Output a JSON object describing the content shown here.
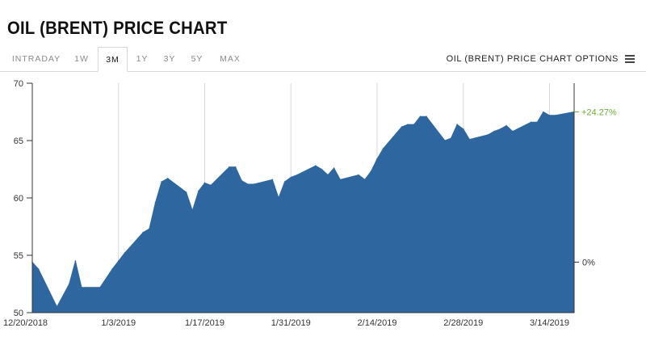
{
  "header": {
    "title": "OIL (BRENT) PRICE CHART"
  },
  "tabs": [
    {
      "label": "INTRADAY",
      "active": false
    },
    {
      "label": "1W",
      "active": false
    },
    {
      "label": "3M",
      "active": true
    },
    {
      "label": "1Y",
      "active": false
    },
    {
      "label": "3Y",
      "active": false
    },
    {
      "label": "5Y",
      "active": false
    },
    {
      "label": "MAX",
      "active": false
    }
  ],
  "options": {
    "label": "OIL (BRENT) PRICE CHART OPTIONS",
    "icon": "hamburger-menu-icon"
  },
  "colors": {
    "area": "#2e67a0",
    "positive": "#6fae36",
    "axis": "#333333",
    "grid": "#d9d9d9"
  },
  "chart_data": {
    "type": "area",
    "title": "",
    "xlabel": "",
    "ylabel": "",
    "ylim": [
      50,
      70
    ],
    "yticks": [
      50,
      55,
      60,
      65,
      70
    ],
    "x_tick_labels": [
      "12/20/2018",
      "1/3/2019",
      "1/17/2019",
      "1/31/2019",
      "2/14/2019",
      "2/28/2019",
      "3/14/2019"
    ],
    "pct_change_label": "+24.27%",
    "baseline_label": "0%",
    "grid": "vertical",
    "x": [
      "2018-12-20",
      "2018-12-21",
      "2018-12-24",
      "2018-12-26",
      "2018-12-27",
      "2018-12-28",
      "2018-12-31",
      "2019-01-02",
      "2019-01-03",
      "2019-01-04",
      "2019-01-07",
      "2019-01-08",
      "2019-01-09",
      "2019-01-10",
      "2019-01-11",
      "2019-01-14",
      "2019-01-15",
      "2019-01-16",
      "2019-01-17",
      "2019-01-18",
      "2019-01-21",
      "2019-01-22",
      "2019-01-23",
      "2019-01-24",
      "2019-01-25",
      "2019-01-28",
      "2019-01-29",
      "2019-01-30",
      "2019-01-31",
      "2019-02-01",
      "2019-02-04",
      "2019-02-05",
      "2019-02-06",
      "2019-02-07",
      "2019-02-08",
      "2019-02-11",
      "2019-02-12",
      "2019-02-13",
      "2019-02-14",
      "2019-02-15",
      "2019-02-18",
      "2019-02-19",
      "2019-02-20",
      "2019-02-21",
      "2019-02-22",
      "2019-02-25",
      "2019-02-26",
      "2019-02-27",
      "2019-02-28",
      "2019-03-01",
      "2019-03-04",
      "2019-03-05",
      "2019-03-06",
      "2019-03-07",
      "2019-03-08",
      "2019-03-11",
      "2019-03-12",
      "2019-03-13",
      "2019-03-14",
      "2019-03-15",
      "2019-03-18"
    ],
    "values": [
      54.4,
      53.8,
      50.5,
      52.5,
      54.5,
      52.2,
      52.2,
      53.8,
      54.5,
      55.2,
      57.0,
      57.3,
      59.6,
      61.4,
      61.7,
      60.5,
      58.9,
      60.6,
      61.3,
      61.1,
      62.7,
      62.7,
      61.5,
      61.2,
      61.2,
      61.6,
      60.0,
      61.4,
      61.8,
      62.0,
      62.8,
      62.5,
      62.0,
      62.6,
      61.6,
      62.0,
      61.6,
      62.3,
      63.4,
      64.3,
      66.2,
      66.4,
      66.4,
      67.1,
      67.1,
      65.0,
      65.2,
      66.4,
      66.0,
      65.1,
      65.5,
      65.8,
      66.0,
      66.3,
      65.8,
      66.6,
      66.6,
      67.5,
      67.2,
      67.2,
      67.5
    ]
  }
}
